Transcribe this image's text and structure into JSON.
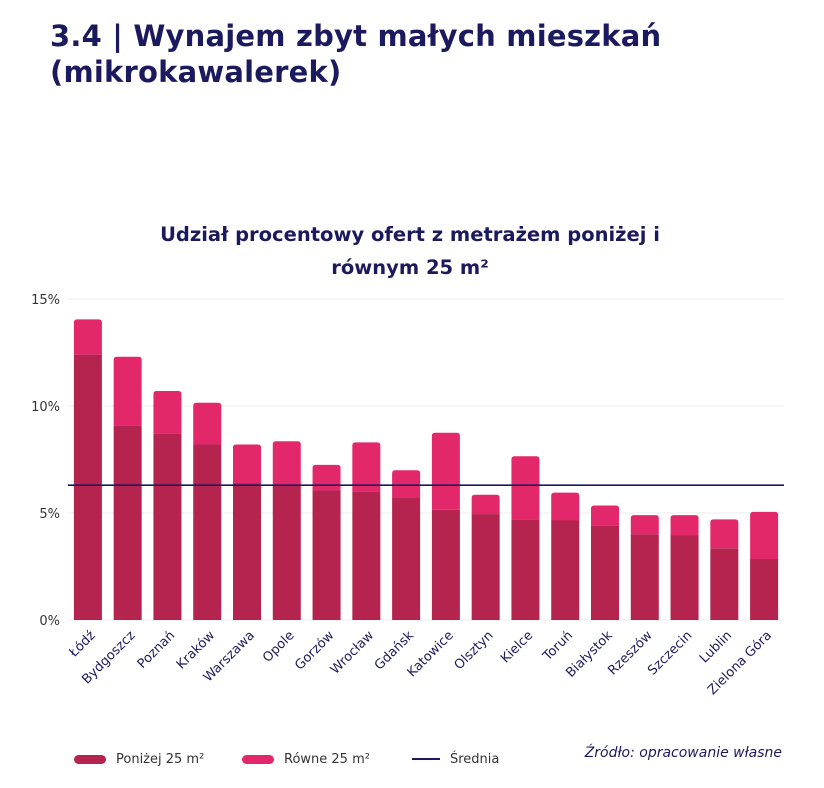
{
  "header": {
    "title_line1": "3.4 | Wynajem zbyt małych mieszkań",
    "title_line2": "(mikrokawalerek)"
  },
  "chart": {
    "title_line1": "Udział procentowy ofert z metrażem poniżej i",
    "title_line2": "równym 25 m²"
  },
  "colors": {
    "below": "#b5234f",
    "equal": "#e2286a",
    "average": "#1c1a5e",
    "grid": "#ececec",
    "title": "#1c1a5e"
  },
  "legend": {
    "below": "Poniżej 25 m²",
    "equal": "Równe 25 m²",
    "average": "Średnia"
  },
  "source": "Źródło: opracowanie własne",
  "chart_data": {
    "type": "bar",
    "stacked": true,
    "categories": [
      "Łódź",
      "Bydgoszcz",
      "Poznań",
      "Kraków",
      "Warszawa",
      "Opole",
      "Gorzów",
      "Wrocław",
      "Gdańsk",
      "Katowice",
      "Olsztyn",
      "Kielce",
      "Toruń",
      "Białystok",
      "Rzeszów",
      "Szczecin",
      "Lublin",
      "Zielona Góra"
    ],
    "series": [
      {
        "name": "Poniżej 25 m²",
        "values": [
          12.4,
          9.1,
          8.7,
          8.2,
          6.4,
          6.3,
          6.05,
          6.0,
          5.7,
          5.15,
          4.95,
          4.7,
          4.65,
          4.4,
          4.0,
          3.95,
          3.35,
          2.85
        ]
      },
      {
        "name": "Równe 25 m²",
        "values": [
          1.65,
          3.2,
          2.0,
          1.95,
          1.8,
          2.05,
          1.2,
          2.3,
          1.3,
          3.6,
          0.9,
          2.95,
          1.3,
          0.95,
          0.9,
          0.95,
          1.35,
          2.2
        ]
      }
    ],
    "average": 6.3,
    "ylim": [
      0,
      15
    ],
    "yticks": [
      0,
      5,
      10,
      15
    ],
    "ytick_labels": [
      "0%",
      "5%",
      "10%",
      "15%"
    ],
    "grid": true,
    "legend_position": "bottom"
  }
}
